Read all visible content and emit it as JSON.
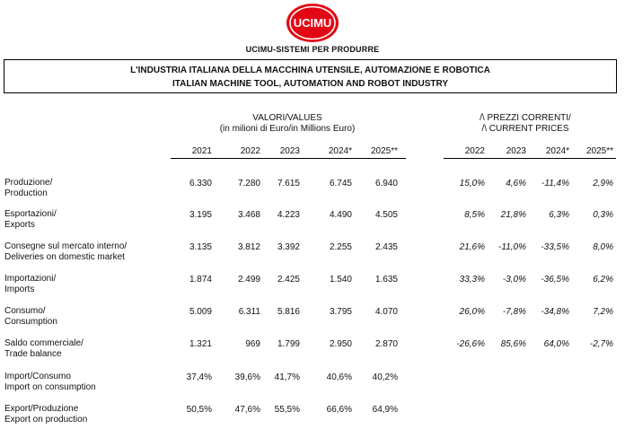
{
  "brand": {
    "logo_text": "UCIMU",
    "logo_color": "#e30613",
    "subtitle": "UCIMU-SISTEMI PER PRODURRE"
  },
  "title": {
    "line1": "L'INDUSTRIA ITALIANA DELLA MACCHINA UTENSILE, AUTOMAZIONE E ROBOTICA",
    "line2": "ITALIAN MACHINE TOOL, AUTOMATION AND ROBOT INDUSTRY"
  },
  "values_header": {
    "line1": "VALORI/VALUES",
    "line2": "(in milioni di Euro/in Millions Euro)"
  },
  "change_header": {
    "line1": "/\\ PREZZI CORRENTI/",
    "line2": "/\\ CURRENT PRICES"
  },
  "years": [
    "2021",
    "2022",
    "2023",
    "2024*",
    "2025**"
  ],
  "change_years": [
    "2022",
    "2023",
    "2024*",
    "2025**"
  ],
  "rows": [
    {
      "label1": "Produzione/",
      "label2": "Production",
      "values": [
        "6.330",
        "7.280",
        "7.615",
        "6.745",
        "6.940"
      ],
      "changes": [
        "15,0%",
        "4,6%",
        "-11,4%",
        "2,9%"
      ]
    },
    {
      "label1": "Esportazioni/",
      "label2": "Exports",
      "values": [
        "3.195",
        "3.468",
        "4.223",
        "4.490",
        "4.505"
      ],
      "changes": [
        "8,5%",
        "21,8%",
        "6,3%",
        "0,3%"
      ]
    },
    {
      "label1": "Consegne sul mercato interno/",
      "label2": "Deliveries on domestic market",
      "values": [
        "3.135",
        "3.812",
        "3.392",
        "2.255",
        "2.435"
      ],
      "changes": [
        "21,6%",
        "-11,0%",
        "-33,5%",
        "8,0%"
      ]
    },
    {
      "label1": "Importazioni/",
      "label2": "Imports",
      "values": [
        "1.874",
        "2.499",
        "2.425",
        "1.540",
        "1.635"
      ],
      "changes": [
        "33,3%",
        "-3,0%",
        "-36,5%",
        "6,2%"
      ]
    },
    {
      "label1": "Consumo/",
      "label2": "Consumption",
      "values": [
        "5.009",
        "6.311",
        "5.816",
        "3.795",
        "4.070"
      ],
      "changes": [
        "26,0%",
        "-7,8%",
        "-34,8%",
        "7,2%"
      ]
    },
    {
      "label1": "Saldo commerciale/",
      "label2": "Trade balance",
      "values": [
        "1.321",
        "969",
        "1.799",
        "2.950",
        "2.870"
      ],
      "changes": [
        "-26,6%",
        "85,6%",
        "64,0%",
        "-2,7%"
      ]
    },
    {
      "label1": "Import/Consumo",
      "label2": "Import on consumption",
      "values": [
        "37,4%",
        "39,6%",
        "41,7%",
        "40,6%",
        "40,2%"
      ],
      "changes": []
    },
    {
      "label1": "Export/Produzione",
      "label2": "Export on production",
      "values": [
        "50,5%",
        "47,6%",
        "55,5%",
        "66,6%",
        "64,9%"
      ],
      "changes": []
    }
  ]
}
